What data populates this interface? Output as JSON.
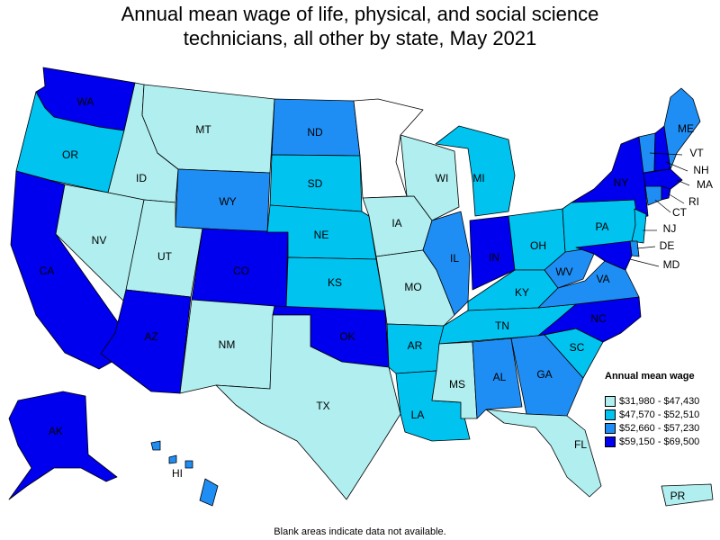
{
  "title": {
    "line1": "Annual mean wage of life, physical, and social science",
    "line2": "technicians, all other by state, May 2021"
  },
  "legend": {
    "title": "Annual mean wage",
    "items": [
      {
        "range": "$31,980 - $47,430",
        "color": "#b0eeef"
      },
      {
        "range": "$47,570 - $52,510",
        "color": "#00c3f0"
      },
      {
        "range": "$52,660 - $57,230",
        "color": "#1f8ef4"
      },
      {
        "range": "$59,150 - $69,500",
        "color": "#0000ee"
      }
    ]
  },
  "footnote": "Blank areas indicate data not available.",
  "colors": {
    "blank": "#ffffff",
    "border": "#000000"
  },
  "states": [
    {
      "id": "WA",
      "tier": 3
    },
    {
      "id": "OR",
      "tier": 1
    },
    {
      "id": "CA",
      "tier": 3
    },
    {
      "id": "ID",
      "tier": 0
    },
    {
      "id": "NV",
      "tier": 0
    },
    {
      "id": "MT",
      "tier": 0
    },
    {
      "id": "WY",
      "tier": 2
    },
    {
      "id": "UT",
      "tier": 0
    },
    {
      "id": "AZ",
      "tier": 3
    },
    {
      "id": "CO",
      "tier": 3
    },
    {
      "id": "NM",
      "tier": 0
    },
    {
      "id": "ND",
      "tier": 2
    },
    {
      "id": "SD",
      "tier": 1
    },
    {
      "id": "NE",
      "tier": 1
    },
    {
      "id": "KS",
      "tier": 1
    },
    {
      "id": "OK",
      "tier": 3
    },
    {
      "id": "TX",
      "tier": 0
    },
    {
      "id": "MN",
      "tier": null
    },
    {
      "id": "IA",
      "tier": 0
    },
    {
      "id": "MO",
      "tier": 0
    },
    {
      "id": "AR",
      "tier": 1
    },
    {
      "id": "LA",
      "tier": 1
    },
    {
      "id": "WI",
      "tier": 0
    },
    {
      "id": "IL",
      "tier": 2
    },
    {
      "id": "MI",
      "tier": 1
    },
    {
      "id": "IN",
      "tier": 3
    },
    {
      "id": "OH",
      "tier": 1
    },
    {
      "id": "KY",
      "tier": 1
    },
    {
      "id": "TN",
      "tier": 1
    },
    {
      "id": "MS",
      "tier": 0
    },
    {
      "id": "AL",
      "tier": 2
    },
    {
      "id": "GA",
      "tier": 2
    },
    {
      "id": "FL",
      "tier": 0
    },
    {
      "id": "SC",
      "tier": 1
    },
    {
      "id": "NC",
      "tier": 3
    },
    {
      "id": "VA",
      "tier": 2
    },
    {
      "id": "WV",
      "tier": 2
    },
    {
      "id": "PA",
      "tier": 1
    },
    {
      "id": "NY",
      "tier": 3
    },
    {
      "id": "VT",
      "tier": 2
    },
    {
      "id": "NH",
      "tier": 3
    },
    {
      "id": "ME",
      "tier": 2
    },
    {
      "id": "MA",
      "tier": 3
    },
    {
      "id": "RI",
      "tier": 3
    },
    {
      "id": "CT",
      "tier": 2
    },
    {
      "id": "NJ",
      "tier": 1
    },
    {
      "id": "DE",
      "tier": 2
    },
    {
      "id": "MD",
      "tier": 3
    },
    {
      "id": "AK",
      "tier": 3
    },
    {
      "id": "HI",
      "tier": 2
    },
    {
      "id": "PR",
      "tier": 0
    }
  ]
}
